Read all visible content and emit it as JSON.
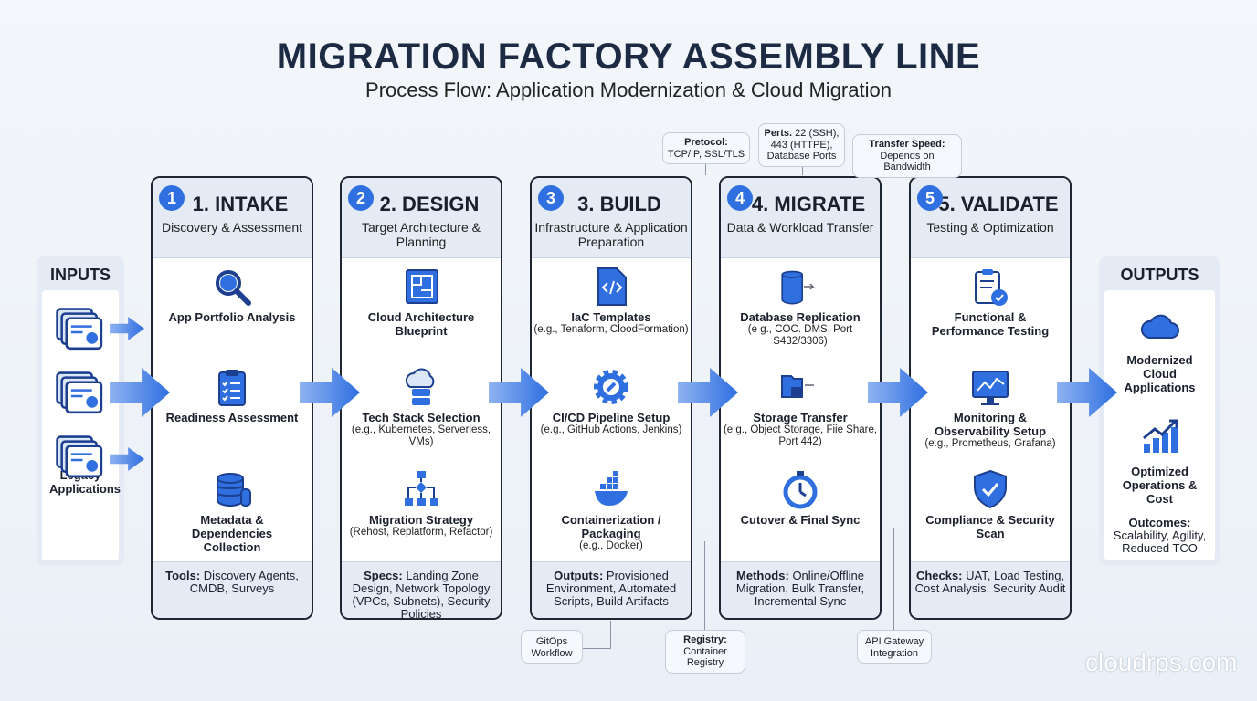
{
  "header": {
    "title": "MIGRATION FACTORY ASSEMBLY LINE",
    "subtitle": "Process Flow: Application Modernization & Cloud Migration"
  },
  "colors": {
    "accent": "#2f6fe0",
    "border": "#1e2533",
    "panel": "#e4ebf4"
  },
  "inputs": {
    "title": "INPUTS",
    "label": "Legacy Applications",
    "icon": "document-stack-icon"
  },
  "outputs": {
    "title": "OUTPUTS",
    "items": [
      {
        "label": "Modernized Cloud Applications",
        "icon": "cloud-icon"
      },
      {
        "label": "Optimized Operations & Cost",
        "icon": "growth-chart-icon"
      }
    ],
    "footer_key": "Outcomes:",
    "footer_text": "Scalability, Agility, Reduced TCO"
  },
  "stages": [
    {
      "num": "1",
      "title": "1. INTAKE",
      "subtitle": "Discovery & Assessment",
      "items": [
        {
          "label": "App Portfolio Analysis",
          "detail": "",
          "icon": "magnifier-icon"
        },
        {
          "label": "Readiness Assessment",
          "detail": "",
          "icon": "clipboard-checklist-icon"
        },
        {
          "label": "Metadata & Dependencies Collection",
          "detail": "",
          "icon": "database-icon"
        }
      ],
      "footer_key": "Tools:",
      "footer_text": "Discovery Agents, CMDB, Surveys"
    },
    {
      "num": "2",
      "title": "2. DESIGN",
      "subtitle": "Target Architecture & Planning",
      "items": [
        {
          "label": "Cloud Architecture Blueprint",
          "detail": "",
          "icon": "blueprint-icon"
        },
        {
          "label": "Tech Stack Selection",
          "detail": "(e.g., Kubernetes, Serverless, VMs)",
          "icon": "cloud-server-icon"
        },
        {
          "label": "Migration Strategy",
          "detail": "(Rehost, Replatform, Refactor)",
          "icon": "flowchart-icon"
        }
      ],
      "footer_key": "Specs:",
      "footer_text": "Landing Zone Design, Network Topology (VPCs, Subnets), Security Policies"
    },
    {
      "num": "3",
      "title": "3. BUILD",
      "subtitle": "Infrastructure & Application Preparation",
      "items": [
        {
          "label": "IaC Templates",
          "detail": "(e.g., Tenaform, CloodFormation)",
          "icon": "code-file-icon"
        },
        {
          "label": "CI/CD Pipeline Setup",
          "detail": "(e.g., GitHub Actions, Jenkins)",
          "icon": "gear-wrench-icon"
        },
        {
          "label": "Containerization / Packaging",
          "detail": "(e.g., Docker)",
          "icon": "docker-whale-icon"
        }
      ],
      "footer_key": "Outputs:",
      "footer_text": "Provisioned Environment, Automated Scripts, Build Artifacts"
    },
    {
      "num": "4",
      "title": "4. MIGRATE",
      "subtitle": "Data & Workload Transfer",
      "items": [
        {
          "label": "Database Replication",
          "detail": "(e g., COC. DMS, Port S432/3306)",
          "icon": "database-transfer-icon"
        },
        {
          "label": "Storage Transfer",
          "detail": "(e g., Object Storage, Fiie Share, Port 442)",
          "icon": "folder-transfer-icon"
        },
        {
          "label": "Cutover & Final Sync",
          "detail": "",
          "icon": "stopwatch-icon"
        }
      ],
      "footer_key": "Methods:",
      "footer_text": "Online/Offline Migration, Bulk Transfer, Incremental Sync"
    },
    {
      "num": "5",
      "title": "5. VALIDATE",
      "subtitle": "Testing & Optimization",
      "items": [
        {
          "label": "Functional & Performance Testing",
          "detail": "",
          "icon": "clipboard-check-icon"
        },
        {
          "label": "Monitoring & Observability Setup",
          "detail": "(e.g., Prometheus, Grafana)",
          "icon": "monitor-chart-icon"
        },
        {
          "label": "Compliance & Security Scan",
          "detail": "",
          "icon": "shield-check-icon"
        }
      ],
      "footer_key": "Checks:",
      "footer_text": "UAT, Load Testing, Cost Analysis, Security Audit"
    }
  ],
  "callouts": {
    "protocol": {
      "key": "Pretocol:",
      "text": "TCP/IP, SSL/TLS"
    },
    "ports": {
      "key": "Perts.",
      "text": "22 (SSH), 443 (HTTPE), Database Ports"
    },
    "speed": {
      "key": "Transfer Speed:",
      "text": "Depends on Bandwidth"
    },
    "gitops": {
      "key": "",
      "text": "GitOps Workflow"
    },
    "registry": {
      "key": "Registry:",
      "text": "Container Registry"
    },
    "api": {
      "key": "",
      "text": "API Gateway Integration"
    }
  },
  "watermark": "cloudrps.com"
}
